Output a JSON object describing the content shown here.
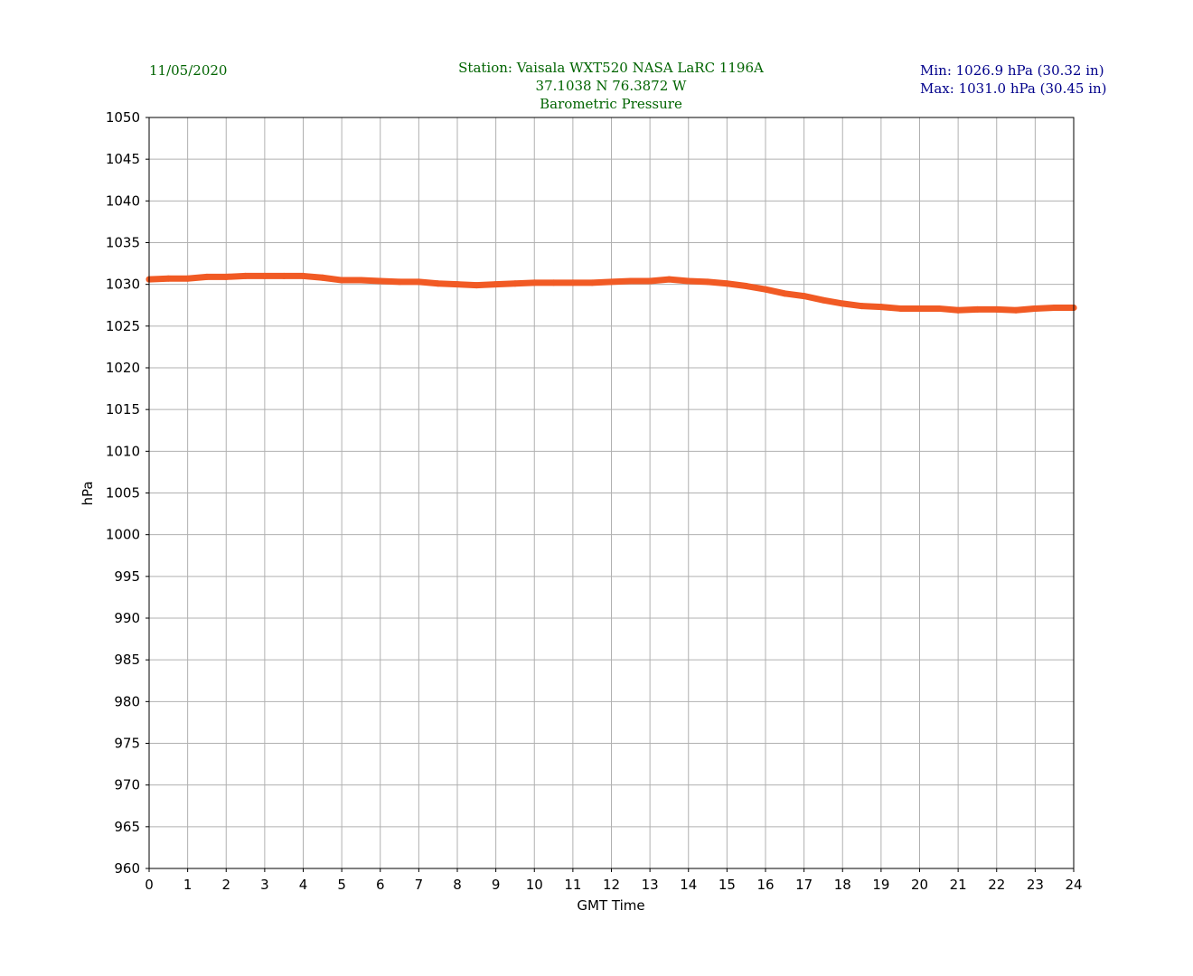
{
  "colors": {
    "title": "#006400",
    "minmax": "#00008b",
    "line": "#f15a24",
    "grid": "#b0b0b0"
  },
  "header": {
    "date": "11/05/2020",
    "title_lines": [
      "Station:  Vaisala WXT520  NASA LaRC 1196A",
      "37.1038 N 76.3872 W",
      "Barometric Pressure"
    ],
    "min": "Min: 1026.9 hPa (30.32 in)",
    "max": "Max: 1031.0 hPa (30.45 in)"
  },
  "chart_data": {
    "type": "line",
    "title": "Barometric Pressure",
    "xlabel": "GMT Time",
    "ylabel": "hPa",
    "xlim": [
      0,
      24
    ],
    "ylim": [
      960,
      1050
    ],
    "xticks": [
      0,
      1,
      2,
      3,
      4,
      5,
      6,
      7,
      8,
      9,
      10,
      11,
      12,
      13,
      14,
      15,
      16,
      17,
      18,
      19,
      20,
      21,
      22,
      23,
      24
    ],
    "yticks": [
      960,
      965,
      970,
      975,
      980,
      985,
      990,
      995,
      1000,
      1005,
      1010,
      1015,
      1020,
      1025,
      1030,
      1035,
      1040,
      1045,
      1050
    ],
    "grid": true,
    "series": [
      {
        "name": "Pressure",
        "x": [
          0,
          0.5,
          1,
          1.5,
          2,
          2.5,
          3,
          3.5,
          4,
          4.5,
          5,
          5.5,
          6,
          6.5,
          7,
          7.5,
          8,
          8.5,
          9,
          9.5,
          10,
          10.5,
          11,
          11.5,
          12,
          12.5,
          13,
          13.5,
          14,
          14.5,
          15,
          15.5,
          16,
          16.5,
          17,
          17.5,
          18,
          18.5,
          19,
          19.5,
          20,
          20.5,
          21,
          21.5,
          22,
          22.5,
          23,
          23.5,
          24
        ],
        "values": [
          1030.6,
          1030.7,
          1030.7,
          1030.9,
          1030.9,
          1031.0,
          1031.0,
          1031.0,
          1031.0,
          1030.8,
          1030.5,
          1030.5,
          1030.4,
          1030.3,
          1030.3,
          1030.1,
          1030.0,
          1029.9,
          1030.0,
          1030.1,
          1030.2,
          1030.2,
          1030.2,
          1030.2,
          1030.3,
          1030.4,
          1030.4,
          1030.6,
          1030.4,
          1030.3,
          1030.1,
          1029.8,
          1029.4,
          1028.9,
          1028.6,
          1028.1,
          1027.7,
          1027.4,
          1027.3,
          1027.1,
          1027.1,
          1027.1,
          1026.9,
          1027.0,
          1027.0,
          1026.9,
          1027.1,
          1027.2,
          1027.2
        ]
      }
    ]
  }
}
